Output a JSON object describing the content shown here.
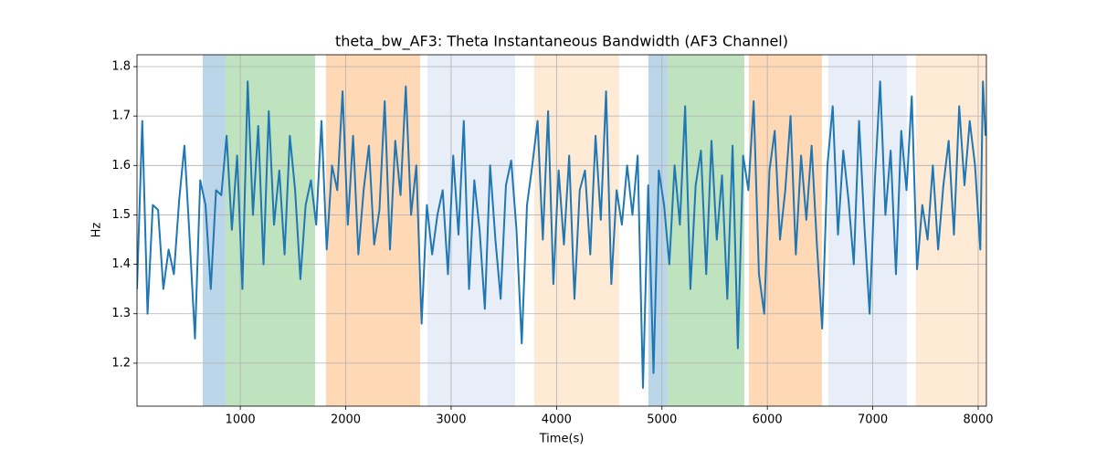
{
  "chart_data": {
    "type": "line",
    "title": "theta_bw_AF3: Theta Instantaneous Bandwidth (AF3 Channel)",
    "xlabel": "Time(s)",
    "ylabel": "Hz",
    "xlim": [
      20,
      8078
    ],
    "ylim": [
      1.113,
      1.824
    ],
    "xticks": [
      1000,
      2000,
      3000,
      4000,
      5000,
      6000,
      7000,
      8000
    ],
    "yticks": [
      1.2,
      1.3,
      1.4,
      1.5,
      1.6,
      1.7,
      1.8
    ],
    "grid": true,
    "span_alpha": 0.3,
    "spans": [
      {
        "x": [
          644,
          860
        ],
        "color": "#1f77b4"
      },
      {
        "x": [
          860,
          1709
        ],
        "color": "#2ca02c"
      },
      {
        "x": [
          1813,
          2706
        ],
        "color": "#ff7f0e"
      },
      {
        "x": [
          2775,
          3607
        ],
        "color": "#aec7e8"
      },
      {
        "x": [
          3788,
          4594
        ],
        "color": "#ffbb78"
      },
      {
        "x": [
          4871,
          5053
        ],
        "color": "#1f77b4"
      },
      {
        "x": [
          5053,
          5781
        ],
        "color": "#2ca02c"
      },
      {
        "x": [
          5824,
          6517
        ],
        "color": "#ff7f0e"
      },
      {
        "x": [
          6578,
          7323
        ],
        "color": "#aec7e8"
      },
      {
        "x": [
          7410,
          8078
        ],
        "color": "#ffbb78"
      }
    ],
    "color": "#1f77b4",
    "x": [
      20,
      70,
      120,
      170,
      220,
      270,
      320,
      370,
      420,
      470,
      520,
      570,
      620,
      670,
      720,
      770,
      820,
      870,
      920,
      970,
      1020,
      1070,
      1120,
      1170,
      1220,
      1270,
      1320,
      1370,
      1420,
      1470,
      1520,
      1570,
      1620,
      1670,
      1720,
      1770,
      1820,
      1870,
      1920,
      1970,
      2020,
      2070,
      2120,
      2170,
      2220,
      2270,
      2320,
      2370,
      2420,
      2470,
      2520,
      2570,
      2620,
      2670,
      2720,
      2770,
      2820,
      2870,
      2920,
      2970,
      3020,
      3070,
      3120,
      3170,
      3220,
      3270,
      3320,
      3370,
      3420,
      3470,
      3520,
      3570,
      3620,
      3670,
      3720,
      3770,
      3820,
      3870,
      3920,
      3970,
      4020,
      4070,
      4120,
      4170,
      4220,
      4270,
      4320,
      4370,
      4420,
      4470,
      4520,
      4570,
      4620,
      4670,
      4720,
      4770,
      4820,
      4870,
      4920,
      4970,
      5020,
      5070,
      5120,
      5170,
      5220,
      5270,
      5320,
      5370,
      5420,
      5470,
      5520,
      5570,
      5620,
      5670,
      5720,
      5770,
      5820,
      5870,
      5920,
      5970,
      6020,
      6070,
      6120,
      6170,
      6220,
      6270,
      6320,
      6370,
      6420,
      6470,
      6520,
      6570,
      6620,
      6670,
      6720,
      6770,
      6820,
      6870,
      6920,
      6970,
      7020,
      7070,
      7120,
      7170,
      7220,
      7270,
      7320,
      7370,
      7420,
      7470,
      7520,
      7570,
      7620,
      7670,
      7720,
      7770,
      7820,
      7870,
      7920,
      7970,
      8020,
      8045,
      8070
    ],
    "values": [
      1.35,
      1.69,
      1.3,
      1.52,
      1.51,
      1.35,
      1.43,
      1.38,
      1.53,
      1.64,
      1.45,
      1.25,
      1.57,
      1.52,
      1.35,
      1.55,
      1.54,
      1.66,
      1.47,
      1.62,
      1.35,
      1.77,
      1.5,
      1.68,
      1.4,
      1.71,
      1.48,
      1.59,
      1.42,
      1.66,
      1.55,
      1.37,
      1.52,
      1.57,
      1.48,
      1.69,
      1.43,
      1.6,
      1.55,
      1.75,
      1.48,
      1.66,
      1.42,
      1.55,
      1.64,
      1.44,
      1.51,
      1.73,
      1.43,
      1.65,
      1.54,
      1.76,
      1.5,
      1.6,
      1.28,
      1.52,
      1.42,
      1.5,
      1.55,
      1.38,
      1.62,
      1.46,
      1.69,
      1.35,
      1.57,
      1.47,
      1.31,
      1.6,
      1.45,
      1.33,
      1.56,
      1.61,
      1.47,
      1.24,
      1.52,
      1.6,
      1.69,
      1.45,
      1.71,
      1.36,
      1.59,
      1.44,
      1.62,
      1.33,
      1.55,
      1.59,
      1.42,
      1.66,
      1.49,
      1.75,
      1.36,
      1.55,
      1.48,
      1.6,
      1.5,
      1.62,
      1.15,
      1.56,
      1.18,
      1.59,
      1.52,
      1.4,
      1.6,
      1.48,
      1.72,
      1.35,
      1.56,
      1.63,
      1.38,
      1.65,
      1.45,
      1.58,
      1.33,
      1.64,
      1.23,
      1.62,
      1.55,
      1.73,
      1.38,
      1.3,
      1.59,
      1.67,
      1.45,
      1.55,
      1.7,
      1.42,
      1.62,
      1.49,
      1.64,
      1.44,
      1.27,
      1.6,
      1.72,
      1.46,
      1.63,
      1.53,
      1.4,
      1.69,
      1.48,
      1.3,
      1.57,
      1.77,
      1.5,
      1.63,
      1.38,
      1.67,
      1.55,
      1.74,
      1.39,
      1.52,
      1.45,
      1.6,
      1.43,
      1.56,
      1.65,
      1.46,
      1.72,
      1.56,
      1.69,
      1.6,
      1.43,
      1.77,
      1.66
    ]
  }
}
